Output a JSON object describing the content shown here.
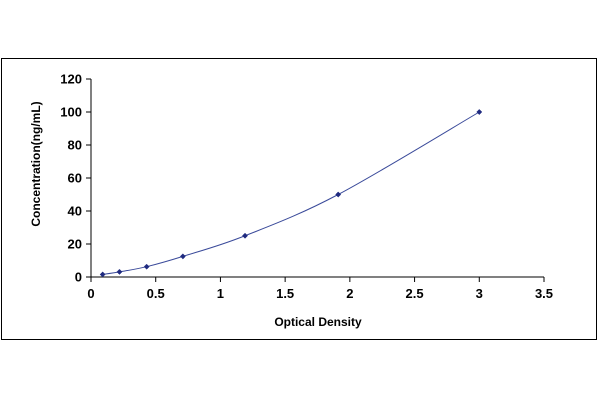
{
  "chart_data": {
    "type": "scatter",
    "xlabel": "Optical Density",
    "ylabel": "Concentration(ng/mL)",
    "xlim": [
      0,
      3.5
    ],
    "ylim": [
      0,
      120
    ],
    "xticks": [
      0,
      0.5,
      1,
      1.5,
      2,
      2.5,
      3,
      3.5
    ],
    "yticks": [
      0,
      20,
      40,
      60,
      80,
      100,
      120
    ],
    "xtick_labels": [
      "0",
      "0.5",
      "1",
      "1.5",
      "2",
      "2.5",
      "3",
      "3.5"
    ],
    "ytick_labels": [
      "0",
      "20",
      "40",
      "60",
      "80",
      "100",
      "120"
    ],
    "grid": false,
    "legend": "none",
    "series": [
      {
        "x": [
          0.09,
          0.22,
          0.43,
          0.71,
          1.19,
          1.91,
          3.0
        ],
        "y": [
          1.56,
          3.12,
          6.25,
          12.5,
          25,
          50,
          100
        ],
        "marker_color": "#1f2a80",
        "line_color": "#3a4a9a",
        "fit": "smooth-curve"
      }
    ]
  }
}
